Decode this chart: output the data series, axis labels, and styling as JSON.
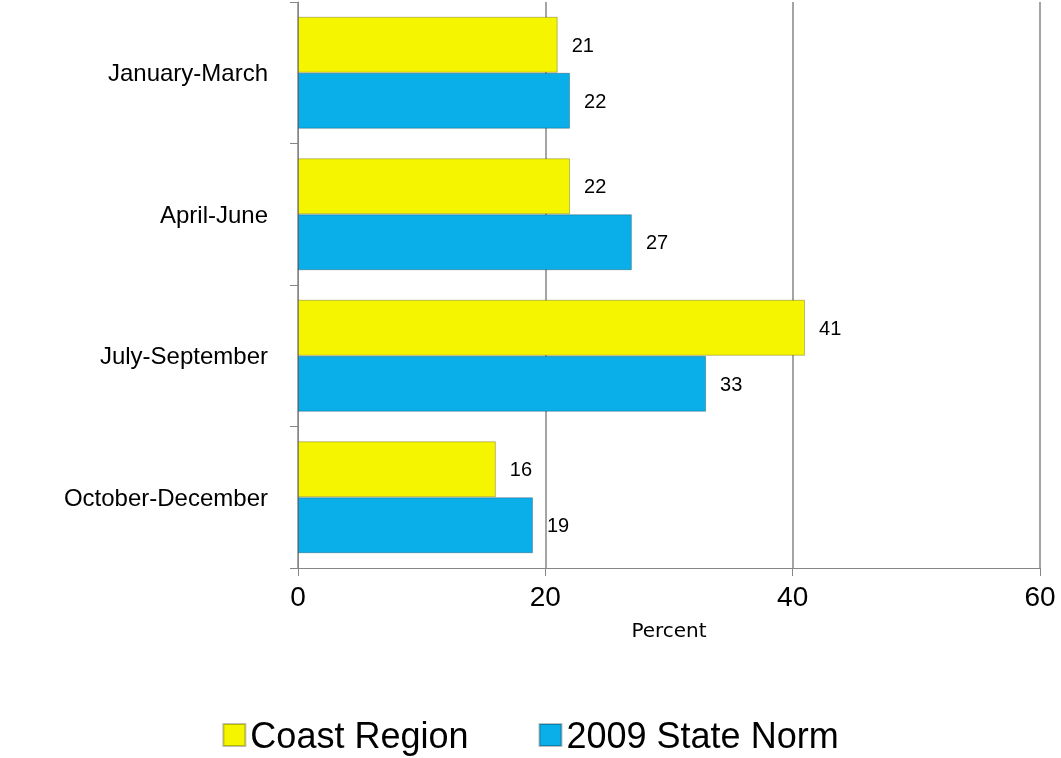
{
  "chart_data": {
    "type": "bar",
    "orientation": "horizontal",
    "xlabel": "Percent",
    "categories": [
      "January-March",
      "April-June",
      "July-September",
      "October-December"
    ],
    "series": [
      {
        "name": "Coast Region",
        "color": "#f5f500",
        "values": [
          21,
          22,
          41,
          16
        ]
      },
      {
        "name": "2009 State Norm",
        "color": "#0aaee8",
        "values": [
          22,
          27,
          33,
          19
        ]
      }
    ],
    "xlim": [
      0,
      60
    ],
    "xticks": [
      0,
      20,
      40,
      60
    ],
    "grid": "x",
    "legend": "bottom",
    "data_labels": true
  }
}
